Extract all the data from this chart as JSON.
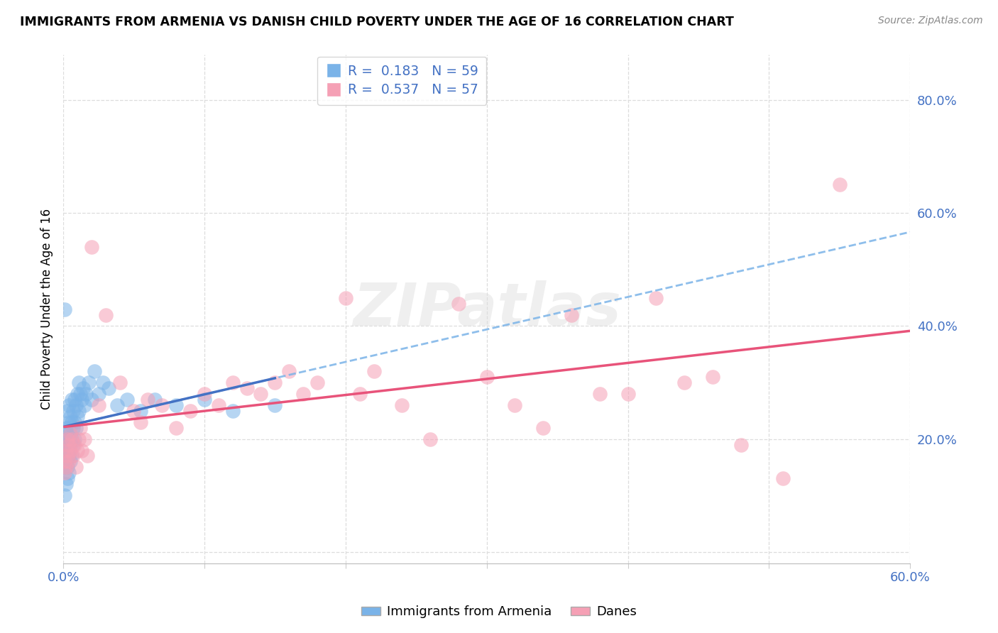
{
  "title": "IMMIGRANTS FROM ARMENIA VS DANISH CHILD POVERTY UNDER THE AGE OF 16 CORRELATION CHART",
  "source": "Source: ZipAtlas.com",
  "ylabel": "Child Poverty Under the Age of 16",
  "xlabel": "",
  "xlim": [
    0.0,
    0.6
  ],
  "ylim": [
    -0.02,
    0.88
  ],
  "xticks": [
    0.0,
    0.1,
    0.2,
    0.3,
    0.4,
    0.5,
    0.6
  ],
  "yticks": [
    0.0,
    0.2,
    0.4,
    0.6,
    0.8
  ],
  "ytick_labels": [
    "",
    "20.0%",
    "40.0%",
    "60.0%",
    "80.0%"
  ],
  "xtick_labels": [
    "0.0%",
    "",
    "",
    "",
    "",
    "",
    "60.0%"
  ],
  "blue_R": 0.183,
  "blue_N": 59,
  "pink_R": 0.537,
  "pink_N": 57,
  "blue_color": "#7ab3e8",
  "pink_color": "#f5a0b5",
  "blue_line_color": "#4472c4",
  "pink_line_color": "#e8537a",
  "dash_line_color": "#7ab3e8",
  "watermark_text": "ZIPatlas",
  "legend_label_blue": "Immigrants from Armenia",
  "legend_label_pink": "Danes",
  "blue_scatter_x": [
    0.001,
    0.001,
    0.001,
    0.001,
    0.002,
    0.002,
    0.002,
    0.002,
    0.002,
    0.003,
    0.003,
    0.003,
    0.003,
    0.003,
    0.003,
    0.004,
    0.004,
    0.004,
    0.004,
    0.004,
    0.005,
    0.005,
    0.005,
    0.005,
    0.006,
    0.006,
    0.006,
    0.006,
    0.007,
    0.007,
    0.007,
    0.008,
    0.008,
    0.008,
    0.009,
    0.009,
    0.01,
    0.01,
    0.011,
    0.011,
    0.012,
    0.013,
    0.014,
    0.015,
    0.016,
    0.018,
    0.02,
    0.022,
    0.025,
    0.028,
    0.032,
    0.038,
    0.045,
    0.055,
    0.065,
    0.08,
    0.1,
    0.12,
    0.15
  ],
  "blue_scatter_y": [
    0.43,
    0.18,
    0.15,
    0.1,
    0.22,
    0.2,
    0.18,
    0.16,
    0.12,
    0.25,
    0.22,
    0.2,
    0.18,
    0.15,
    0.13,
    0.26,
    0.23,
    0.2,
    0.17,
    0.14,
    0.24,
    0.21,
    0.19,
    0.16,
    0.27,
    0.23,
    0.2,
    0.17,
    0.25,
    0.22,
    0.19,
    0.27,
    0.23,
    0.2,
    0.26,
    0.22,
    0.28,
    0.24,
    0.3,
    0.25,
    0.28,
    0.27,
    0.29,
    0.26,
    0.28,
    0.3,
    0.27,
    0.32,
    0.28,
    0.3,
    0.29,
    0.26,
    0.27,
    0.25,
    0.27,
    0.26,
    0.27,
    0.25,
    0.26
  ],
  "pink_scatter_x": [
    0.001,
    0.001,
    0.002,
    0.002,
    0.003,
    0.003,
    0.004,
    0.004,
    0.005,
    0.005,
    0.006,
    0.007,
    0.008,
    0.009,
    0.01,
    0.011,
    0.012,
    0.013,
    0.015,
    0.017,
    0.02,
    0.025,
    0.03,
    0.04,
    0.05,
    0.055,
    0.06,
    0.07,
    0.08,
    0.09,
    0.1,
    0.11,
    0.12,
    0.13,
    0.14,
    0.15,
    0.16,
    0.17,
    0.18,
    0.2,
    0.21,
    0.22,
    0.24,
    0.26,
    0.28,
    0.3,
    0.32,
    0.34,
    0.36,
    0.38,
    0.4,
    0.42,
    0.44,
    0.46,
    0.48,
    0.51,
    0.55
  ],
  "pink_scatter_y": [
    0.16,
    0.14,
    0.18,
    0.15,
    0.2,
    0.17,
    0.19,
    0.16,
    0.21,
    0.18,
    0.2,
    0.17,
    0.19,
    0.15,
    0.18,
    0.2,
    0.22,
    0.18,
    0.2,
    0.17,
    0.54,
    0.26,
    0.42,
    0.3,
    0.25,
    0.23,
    0.27,
    0.26,
    0.22,
    0.25,
    0.28,
    0.26,
    0.3,
    0.29,
    0.28,
    0.3,
    0.32,
    0.28,
    0.3,
    0.45,
    0.28,
    0.32,
    0.26,
    0.2,
    0.44,
    0.31,
    0.26,
    0.22,
    0.42,
    0.28,
    0.28,
    0.45,
    0.3,
    0.31,
    0.19,
    0.13,
    0.65
  ]
}
